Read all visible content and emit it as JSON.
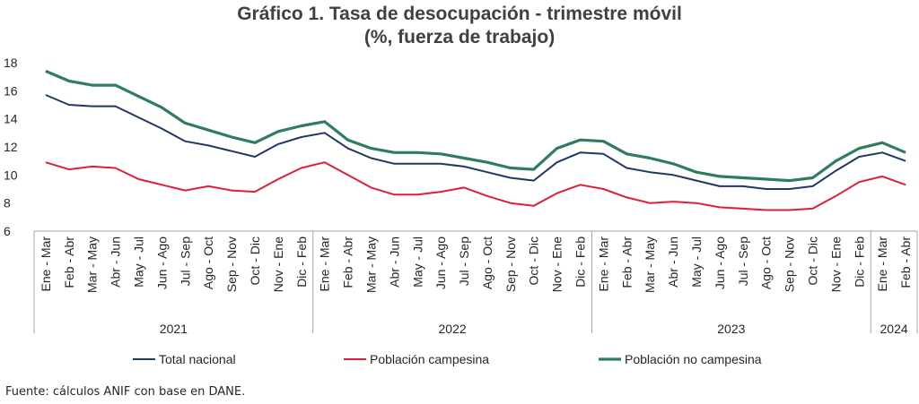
{
  "chart_data": {
    "type": "line",
    "title": "Gráfico 1. Tasa de desocupación - trimestre móvil",
    "subtitle": "(%, fuerza de trabajo)",
    "x": [
      "Ene - Mar",
      "Feb - Abr",
      "Mar - May",
      "Abr - Jun",
      "May - Jul",
      "Jun - Ago",
      "Jul - Sep",
      "Ago - Oct",
      "Sep - Nov",
      "Oct - Dic",
      "Nov - Ene",
      "Dic - Feb",
      "Ene - Mar",
      "Feb - Abr",
      "Mar - May",
      "Abr - Jun",
      "May - Jul",
      "Jun - Ago",
      "Jul - Sep",
      "Ago - Oct",
      "Sep - Nov",
      "Oct - Dic",
      "Nov - Ene",
      "Dic - Feb",
      "Ene - Mar",
      "Feb - Abr",
      "Mar - May",
      "Abr - Jun",
      "May - Jul",
      "Jun - Ago",
      "Jul - Sep",
      "Ago - Oct",
      "Sep - Nov",
      "Oct - Dic",
      "Nov - Ene",
      "Dic - Feb",
      "Ene - Mar",
      "Feb - Abr"
    ],
    "year_groups": [
      {
        "label": "2021",
        "start": 0,
        "end": 11
      },
      {
        "label": "2022",
        "start": 12,
        "end": 23
      },
      {
        "label": "2023",
        "start": 24,
        "end": 35
      },
      {
        "label": "2024",
        "start": 36,
        "end": 37
      }
    ],
    "series": [
      {
        "name": "Total nacional",
        "color": "#1f3864",
        "values": [
          15.7,
          15.0,
          14.9,
          14.9,
          14.1,
          13.3,
          12.4,
          12.1,
          11.7,
          11.3,
          12.2,
          12.7,
          13.0,
          11.9,
          11.2,
          10.8,
          10.8,
          10.8,
          10.6,
          10.2,
          9.8,
          9.6,
          10.9,
          11.6,
          11.5,
          10.5,
          10.2,
          10.0,
          9.6,
          9.2,
          9.2,
          9.0,
          9.0,
          9.2,
          10.3,
          11.3,
          11.6,
          11.0
        ]
      },
      {
        "name": "Población campesina",
        "color": "#e01e37",
        "values": [
          10.9,
          10.4,
          10.6,
          10.5,
          9.7,
          9.3,
          8.9,
          9.2,
          8.9,
          8.8,
          9.7,
          10.5,
          10.9,
          10.0,
          9.1,
          8.6,
          8.6,
          8.8,
          9.1,
          8.5,
          8.0,
          7.8,
          8.7,
          9.3,
          9.0,
          8.4,
          8.0,
          8.1,
          8.0,
          7.7,
          7.6,
          7.5,
          7.5,
          7.6,
          8.5,
          9.5,
          9.9,
          9.3
        ]
      },
      {
        "name": "Población no campesina",
        "color": "#2e7d62",
        "values": [
          17.4,
          16.7,
          16.4,
          16.4,
          15.6,
          14.8,
          13.7,
          13.2,
          12.7,
          12.3,
          13.1,
          13.5,
          13.8,
          12.5,
          11.9,
          11.6,
          11.6,
          11.5,
          11.2,
          10.9,
          10.5,
          10.4,
          11.9,
          12.5,
          12.4,
          11.5,
          11.2,
          10.8,
          10.2,
          9.9,
          9.8,
          9.7,
          9.6,
          9.8,
          11.0,
          11.9,
          12.3,
          11.6
        ]
      }
    ],
    "ylim": [
      6,
      18
    ],
    "yticks": [
      6,
      8,
      10,
      12,
      14,
      16,
      18
    ],
    "grid": false,
    "legend_position": "bottom"
  },
  "source": "Fuente: cálculos ANIF con base en DANE."
}
